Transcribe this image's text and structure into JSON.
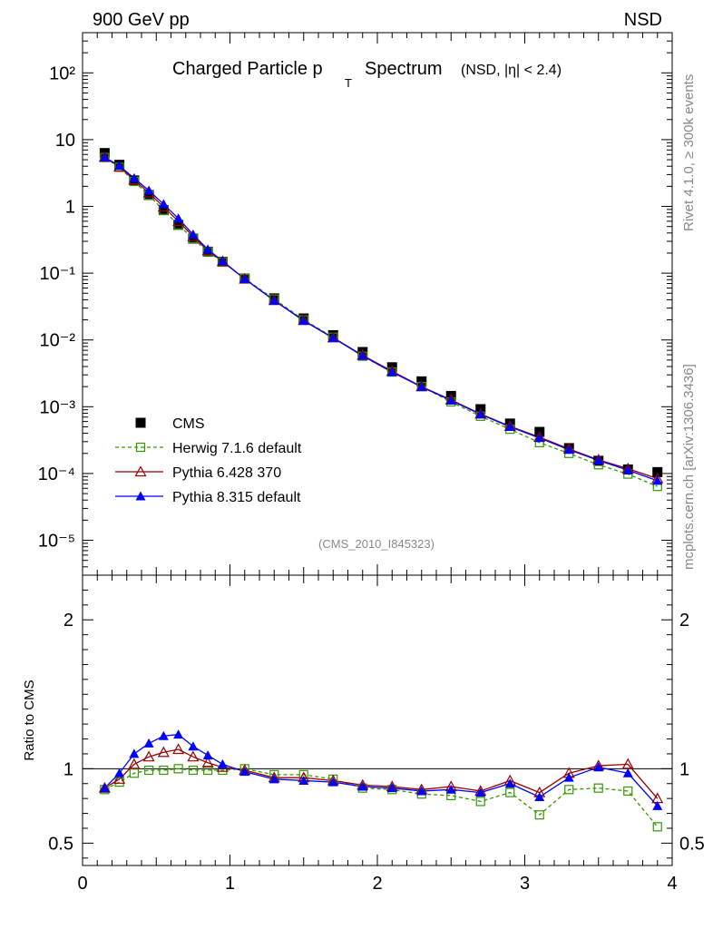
{
  "header": {
    "left": "900 GeV pp",
    "right": "NSD"
  },
  "side_labels": {
    "rivet": "Rivet 4.1.0, ≥ 300k events",
    "mcplots": "mcplots.cern.ch [arXiv:1306.3436]"
  },
  "chart_data": [
    {
      "panel": "main",
      "type": "scatter",
      "title": "Charged Particle p",
      "title_subscript": "T",
      "title_main_suffix": "Spectrum",
      "title_suffix": "(NSD, |η| < 2.4)",
      "analysis_tag": "(CMS_2010_I845323)",
      "yscale": "log",
      "xlim": [
        0,
        4
      ],
      "ylim": [
        3e-06,
        400
      ],
      "y_tick_labels": [
        "10²",
        "10",
        "1",
        "10⁻¹",
        "10⁻²",
        "10⁻³",
        "10⁻⁴",
        "10⁻⁵"
      ],
      "legend_position": "lower-left",
      "x": [
        0.15,
        0.25,
        0.35,
        0.45,
        0.55,
        0.65,
        0.75,
        0.85,
        0.95,
        1.1,
        1.3,
        1.5,
        1.7,
        1.9,
        2.1,
        2.3,
        2.5,
        2.7,
        2.9,
        3.1,
        3.3,
        3.5,
        3.7,
        3.9
      ],
      "series": [
        {
          "name": "CMS",
          "color": "#000000",
          "marker": "square-filled",
          "line": "none",
          "values": [
            6.3,
            4.2,
            2.45,
            1.48,
            0.88,
            0.53,
            0.33,
            0.21,
            0.148,
            0.083,
            0.042,
            0.021,
            0.0118,
            0.0066,
            0.0039,
            0.0024,
            0.00145,
            0.00092,
            0.00056,
            0.00042,
            0.00024,
            0.000155,
            0.000115,
            0.000105
          ]
        },
        {
          "name": "Herwig 7.1.6 default",
          "color": "#339900",
          "marker": "square-open",
          "line": "dashed",
          "values": [
            5.4,
            3.85,
            2.37,
            1.47,
            0.875,
            0.53,
            0.33,
            0.209,
            0.147,
            0.083,
            0.041,
            0.02,
            0.011,
            0.0057,
            0.0033,
            0.002,
            0.00118,
            0.00072,
            0.00046,
            0.00029,
            0.0002,
            0.000135,
            9.8e-05,
            6.4e-05
          ]
        },
        {
          "name": "Pythia 6.428 370",
          "color": "#990000",
          "marker": "triangle-open",
          "line": "solid",
          "values": [
            5.45,
            3.9,
            2.5,
            1.6,
            0.98,
            0.6,
            0.355,
            0.218,
            0.15,
            0.082,
            0.039,
            0.0196,
            0.0108,
            0.0059,
            0.0034,
            0.002,
            0.00127,
            0.00078,
            0.00051,
            0.00035,
            0.000234,
            0.00016,
            0.000118,
            8.4e-05
          ]
        },
        {
          "name": "Pythia 8.315 default",
          "color": "#0000ff",
          "marker": "triangle-filled",
          "line": "solid",
          "values": [
            5.45,
            4.05,
            2.65,
            1.73,
            1.08,
            0.66,
            0.38,
            0.226,
            0.152,
            0.082,
            0.039,
            0.0194,
            0.0107,
            0.0058,
            0.0033,
            0.00198,
            0.00124,
            0.00077,
            0.0005,
            0.00034,
            0.000227,
            0.000157,
            0.000112,
            7.8e-05
          ]
        }
      ]
    },
    {
      "panel": "ratio",
      "type": "line",
      "ylabel": "Ratio to CMS",
      "xlim": [
        0,
        4
      ],
      "ylim": [
        0.35,
        2.3
      ],
      "x_ticks": [
        0,
        1,
        2,
        3,
        4
      ],
      "x_tick_labels": [
        "0",
        "1",
        "2",
        "3",
        "4"
      ],
      "y_ticks": [
        0.5,
        1,
        2
      ],
      "y_tick_labels": [
        "0.5",
        "1",
        "2"
      ],
      "reference_line": 1,
      "x": [
        0.15,
        0.25,
        0.35,
        0.45,
        0.55,
        0.65,
        0.75,
        0.85,
        0.95,
        1.1,
        1.3,
        1.5,
        1.7,
        1.9,
        2.1,
        2.3,
        2.5,
        2.7,
        2.9,
        3.1,
        3.3,
        3.5,
        3.7,
        3.9
      ],
      "series": [
        {
          "name": "Herwig 7.1.6 default",
          "color": "#339900",
          "marker": "square-open",
          "line": "dashed",
          "values": [
            0.86,
            0.91,
            0.97,
            0.99,
            0.99,
            1.0,
            0.99,
            0.99,
            0.99,
            1.0,
            0.96,
            0.96,
            0.93,
            0.87,
            0.86,
            0.83,
            0.82,
            0.78,
            0.84,
            0.69,
            0.86,
            0.87,
            0.85,
            0.61
          ]
        },
        {
          "name": "Pythia 6.428 370",
          "color": "#990000",
          "marker": "triangle-open",
          "line": "solid",
          "values": [
            0.87,
            0.93,
            1.03,
            1.08,
            1.11,
            1.13,
            1.08,
            1.04,
            1.01,
            0.99,
            0.94,
            0.94,
            0.92,
            0.89,
            0.88,
            0.86,
            0.88,
            0.85,
            0.92,
            0.84,
            0.97,
            1.02,
            1.03,
            0.8
          ]
        },
        {
          "name": "Pythia 8.315 default",
          "color": "#0000ff",
          "marker": "triangle-filled",
          "line": "solid",
          "values": [
            0.87,
            0.97,
            1.1,
            1.17,
            1.22,
            1.23,
            1.15,
            1.09,
            1.03,
            0.98,
            0.93,
            0.92,
            0.91,
            0.88,
            0.87,
            0.85,
            0.86,
            0.84,
            0.9,
            0.81,
            0.94,
            1.01,
            0.97,
            0.75
          ]
        }
      ]
    }
  ]
}
